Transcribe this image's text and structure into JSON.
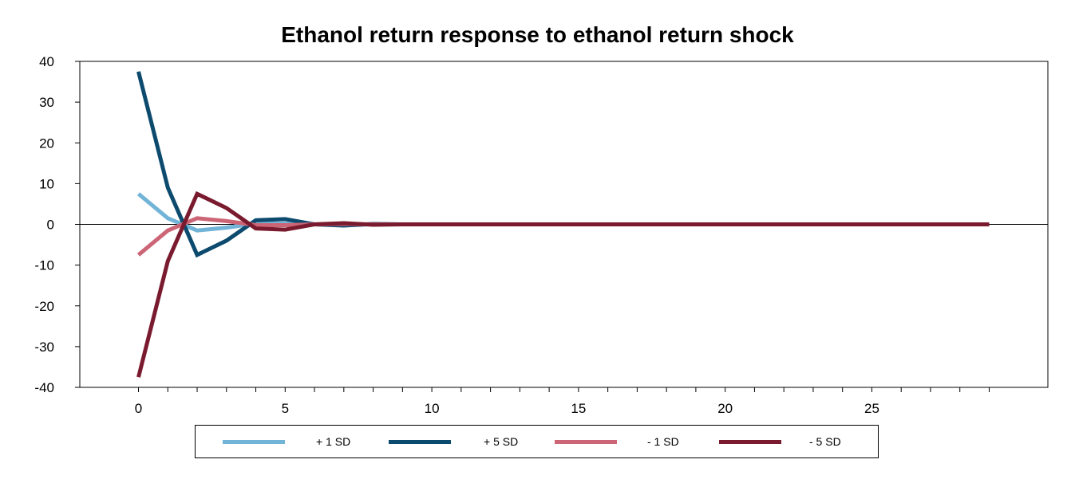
{
  "chart_data": {
    "type": "line",
    "title": "Ethanol return response to ethanol return shock",
    "xlabel": "",
    "ylabel": "",
    "x": [
      0,
      1,
      2,
      3,
      4,
      5,
      6,
      7,
      8,
      9,
      10,
      11,
      12,
      13,
      14,
      15,
      16,
      17,
      18,
      19,
      20,
      21,
      22,
      23,
      24,
      25,
      26,
      27,
      28,
      29
    ],
    "xlim": [
      -2,
      31
    ],
    "ylim": [
      -40,
      40
    ],
    "x_ticks": [
      0,
      5,
      10,
      15,
      20,
      25
    ],
    "y_ticks": [
      40,
      30,
      20,
      10,
      0,
      -10,
      -20,
      -30,
      -40
    ],
    "x_tick_labels": [
      "0",
      "5",
      "10",
      "15",
      "20",
      "25"
    ],
    "y_tick_labels": [
      "40",
      "30",
      "20",
      "10",
      "0",
      "-10",
      "-20",
      "-30",
      "-40"
    ],
    "grid": false,
    "legend_position": "bottom",
    "series": [
      {
        "name": "+ 1 SD",
        "color": "#72B4D8",
        "values": [
          7.5,
          1.5,
          -1.5,
          -0.8,
          0.2,
          0.2,
          0.0,
          -0.1,
          0,
          0,
          0,
          0,
          0,
          0,
          0,
          0,
          0,
          0,
          0,
          0,
          0,
          0,
          0,
          0,
          0,
          0,
          0,
          0,
          0,
          0
        ]
      },
      {
        "name": "+ 5 SD",
        "color": "#0C4A6E",
        "values": [
          37.5,
          9.0,
          -7.5,
          -4.0,
          1.0,
          1.3,
          0.0,
          -0.3,
          0.1,
          0,
          0,
          0,
          0,
          0,
          0,
          0,
          0,
          0,
          0,
          0,
          0,
          0,
          0,
          0,
          0,
          0,
          0,
          0,
          0,
          0
        ]
      },
      {
        "name": "- 1 SD",
        "color": "#CC6677",
        "values": [
          -7.5,
          -1.5,
          1.5,
          0.8,
          -0.2,
          -0.2,
          0.0,
          0.1,
          0,
          0,
          0,
          0,
          0,
          0,
          0,
          0,
          0,
          0,
          0,
          0,
          0,
          0,
          0,
          0,
          0,
          0,
          0,
          0,
          0,
          0
        ]
      },
      {
        "name": "- 5 SD",
        "color": "#7A1A2E",
        "values": [
          -37.5,
          -9.0,
          7.5,
          4.0,
          -1.0,
          -1.3,
          0.0,
          0.3,
          -0.1,
          0,
          0,
          0,
          0,
          0,
          0,
          0,
          0,
          0,
          0,
          0,
          0,
          0,
          0,
          0,
          0,
          0,
          0,
          0,
          0,
          0
        ]
      }
    ]
  }
}
